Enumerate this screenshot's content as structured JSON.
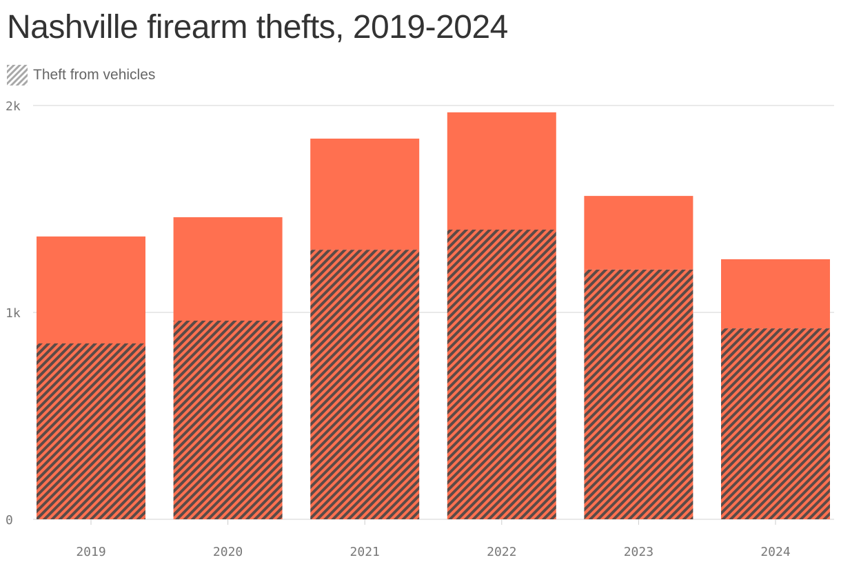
{
  "title": "Nashville firearm thefts, 2019-2024",
  "legend": {
    "hatched_label": "Theft from vehicles",
    "icon": "diagonal-hatch-swatch"
  },
  "colors": {
    "bar": "#ff7050",
    "hatch": "#5b4b47",
    "grid": "#e2e2e2",
    "legend_swatch": "#a8a8a8"
  },
  "chart_data": {
    "type": "bar",
    "title": "Nashville firearm thefts, 2019-2024",
    "categories": [
      "2019",
      "2020",
      "2021",
      "2022",
      "2023",
      "2024"
    ],
    "series": [
      {
        "name": "Theft from vehicles",
        "values": [
          850,
          960,
          1303,
          1400,
          1207,
          923
        ]
      },
      {
        "values": [
          517,
          500,
          537,
          567,
          356,
          334
        ]
      }
    ],
    "totals": [
      1367,
      1460,
      1840,
      1967,
      1563,
      1257
    ],
    "stacked": true,
    "ylim": [
      0,
      2000
    ],
    "yticks": [
      {
        "value": 0,
        "label": "0"
      },
      {
        "value": 1000,
        "label": "1k"
      },
      {
        "value": 2000,
        "label": "2k"
      }
    ],
    "grid": true,
    "legend_position": "top-left"
  }
}
